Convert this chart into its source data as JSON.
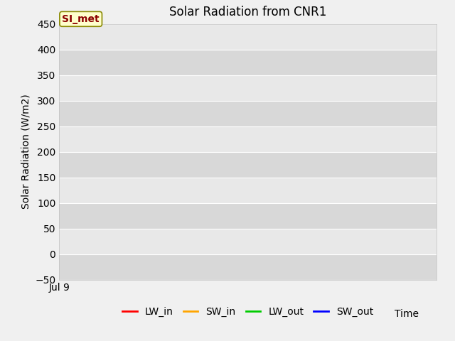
{
  "title": "Solar Radiation from CNR1",
  "ylabel": "Solar Radiation (W/m2)",
  "xlabel": "Time",
  "ylim": [
    -50,
    450
  ],
  "yticks": [
    -50,
    0,
    50,
    100,
    150,
    200,
    250,
    300,
    350,
    400,
    450
  ],
  "xtick_label": "Jul 9",
  "annotation_text": "SI_met",
  "figure_bg": "#f0f0f0",
  "plot_bg": "#e8e8e8",
  "band_color_dark": "#d8d8d8",
  "band_color_light": "#e8e8e8",
  "grid_color": "#ffffff",
  "title_fontsize": 12,
  "label_fontsize": 10,
  "tick_fontsize": 10,
  "legend_items": [
    {
      "label": "LW_in",
      "color": "#ff0000"
    },
    {
      "label": "SW_in",
      "color": "#ffa500"
    },
    {
      "label": "LW_out",
      "color": "#00cc00"
    },
    {
      "label": "SW_out",
      "color": "#0000ff"
    }
  ]
}
